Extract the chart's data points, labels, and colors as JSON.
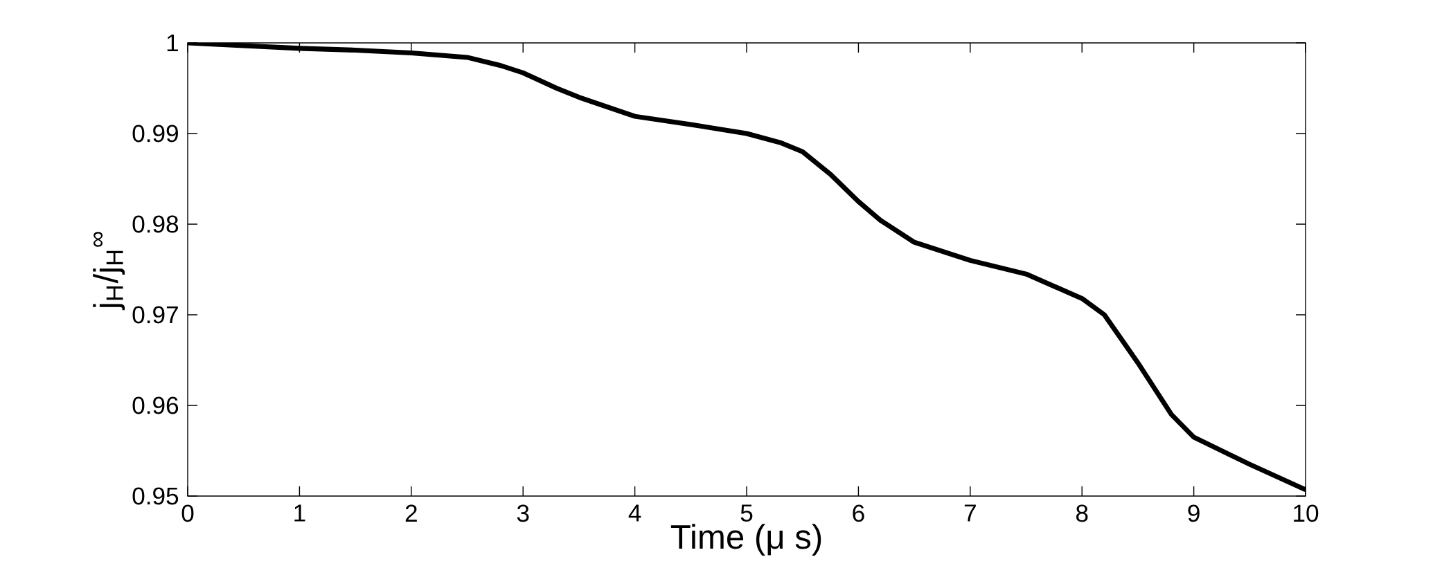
{
  "chart_data": {
    "type": "line",
    "xlabel": "Time (μ s)",
    "ylabel": "j$_{H}$/j$_{H}$$^{∞}$",
    "x": [
      0,
      0.5,
      1,
      1.5,
      2,
      2.5,
      2.8,
      3,
      3.3,
      3.5,
      4,
      4.5,
      5,
      5.3,
      5.5,
      5.75,
      6,
      6.2,
      6.5,
      7,
      7.5,
      8,
      8.2,
      8.5,
      8.8,
      9,
      9.5,
      10
    ],
    "series": [
      {
        "color": "#000000",
        "values": [
          1.0,
          0.9997,
          0.9994,
          0.9992,
          0.9989,
          0.9984,
          0.9975,
          0.9967,
          0.995,
          0.994,
          0.9919,
          0.991,
          0.99,
          0.989,
          0.988,
          0.9855,
          0.9825,
          0.9804,
          0.978,
          0.976,
          0.9745,
          0.9718,
          0.97,
          0.9647,
          0.959,
          0.9565,
          0.9535,
          0.9507
        ]
      }
    ],
    "xlim": [
      0,
      10
    ],
    "ylim": [
      0.95,
      1
    ],
    "xticks": [
      0,
      1,
      2,
      3,
      4,
      5,
      6,
      7,
      8,
      9,
      10
    ],
    "yticks": [
      0.95,
      0.96,
      0.97,
      0.98,
      0.99,
      1
    ],
    "grid": false,
    "line_style": "solid"
  }
}
